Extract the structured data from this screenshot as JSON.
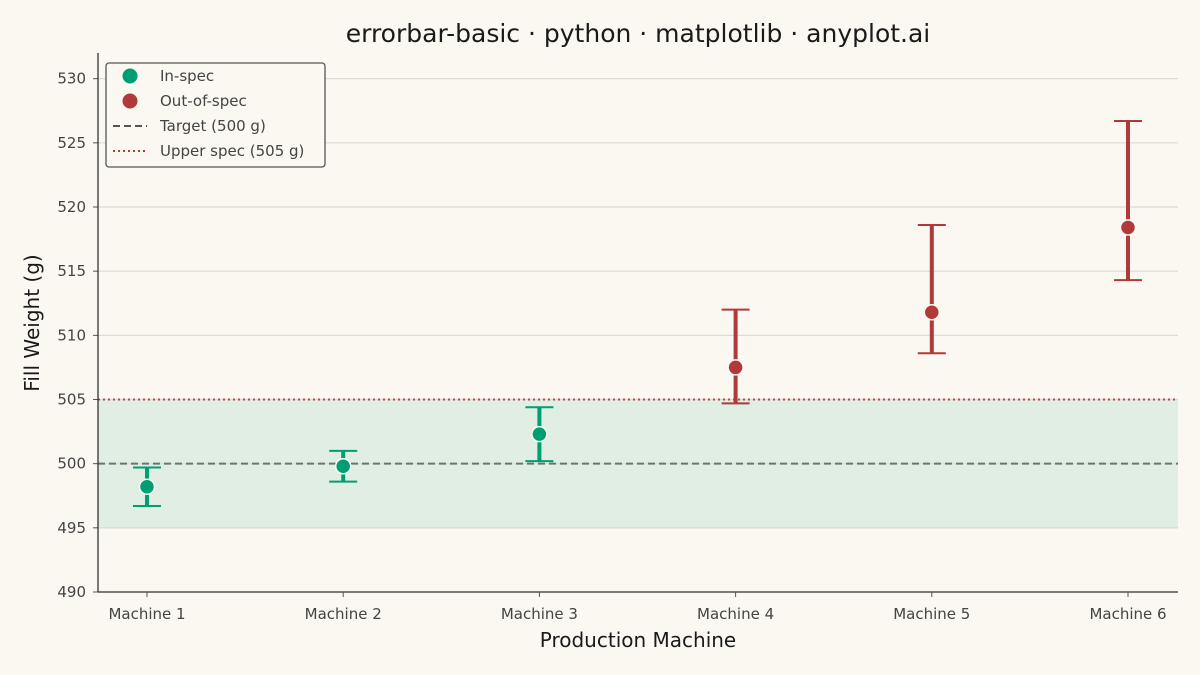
{
  "chart_data": {
    "type": "scatter",
    "title": "errorbar-basic · python · matplotlib · anyplot.ai",
    "xlabel": "Production Machine",
    "ylabel": "Fill Weight (g)",
    "categories": [
      "Machine 1",
      "Machine 2",
      "Machine 3",
      "Machine 4",
      "Machine 5",
      "Machine 6"
    ],
    "ylim": [
      490,
      532
    ],
    "yticks": [
      490,
      495,
      500,
      505,
      510,
      515,
      520,
      525,
      530
    ],
    "grid": "horizontal",
    "legend_position": "top-left",
    "series": [
      {
        "name": "In-spec",
        "color": "#009E73",
        "points": [
          {
            "x": "Machine 1",
            "y": 498.2,
            "low": 496.7,
            "high": 499.7
          },
          {
            "x": "Machine 2",
            "y": 499.8,
            "low": 498.6,
            "high": 501.0
          },
          {
            "x": "Machine 3",
            "y": 502.3,
            "low": 500.2,
            "high": 504.4
          }
        ]
      },
      {
        "name": "Out-of-spec",
        "color": "#B03A3A",
        "points": [
          {
            "x": "Machine 4",
            "y": 507.5,
            "low": 504.7,
            "high": 512.0
          },
          {
            "x": "Machine 5",
            "y": 511.8,
            "low": 508.6,
            "high": 518.6
          },
          {
            "x": "Machine 6",
            "y": 518.4,
            "low": 514.3,
            "high": 526.7
          }
        ]
      }
    ],
    "reference_lines": [
      {
        "name": "Target (500 g)",
        "y": 500,
        "style": "dashed",
        "color": "#555555"
      },
      {
        "name": "Upper spec (505 g)",
        "y": 505,
        "style": "dotted",
        "color": "#B03A3A"
      }
    ],
    "spec_band": {
      "low": 495,
      "high": 505,
      "color": "#009E73"
    }
  }
}
